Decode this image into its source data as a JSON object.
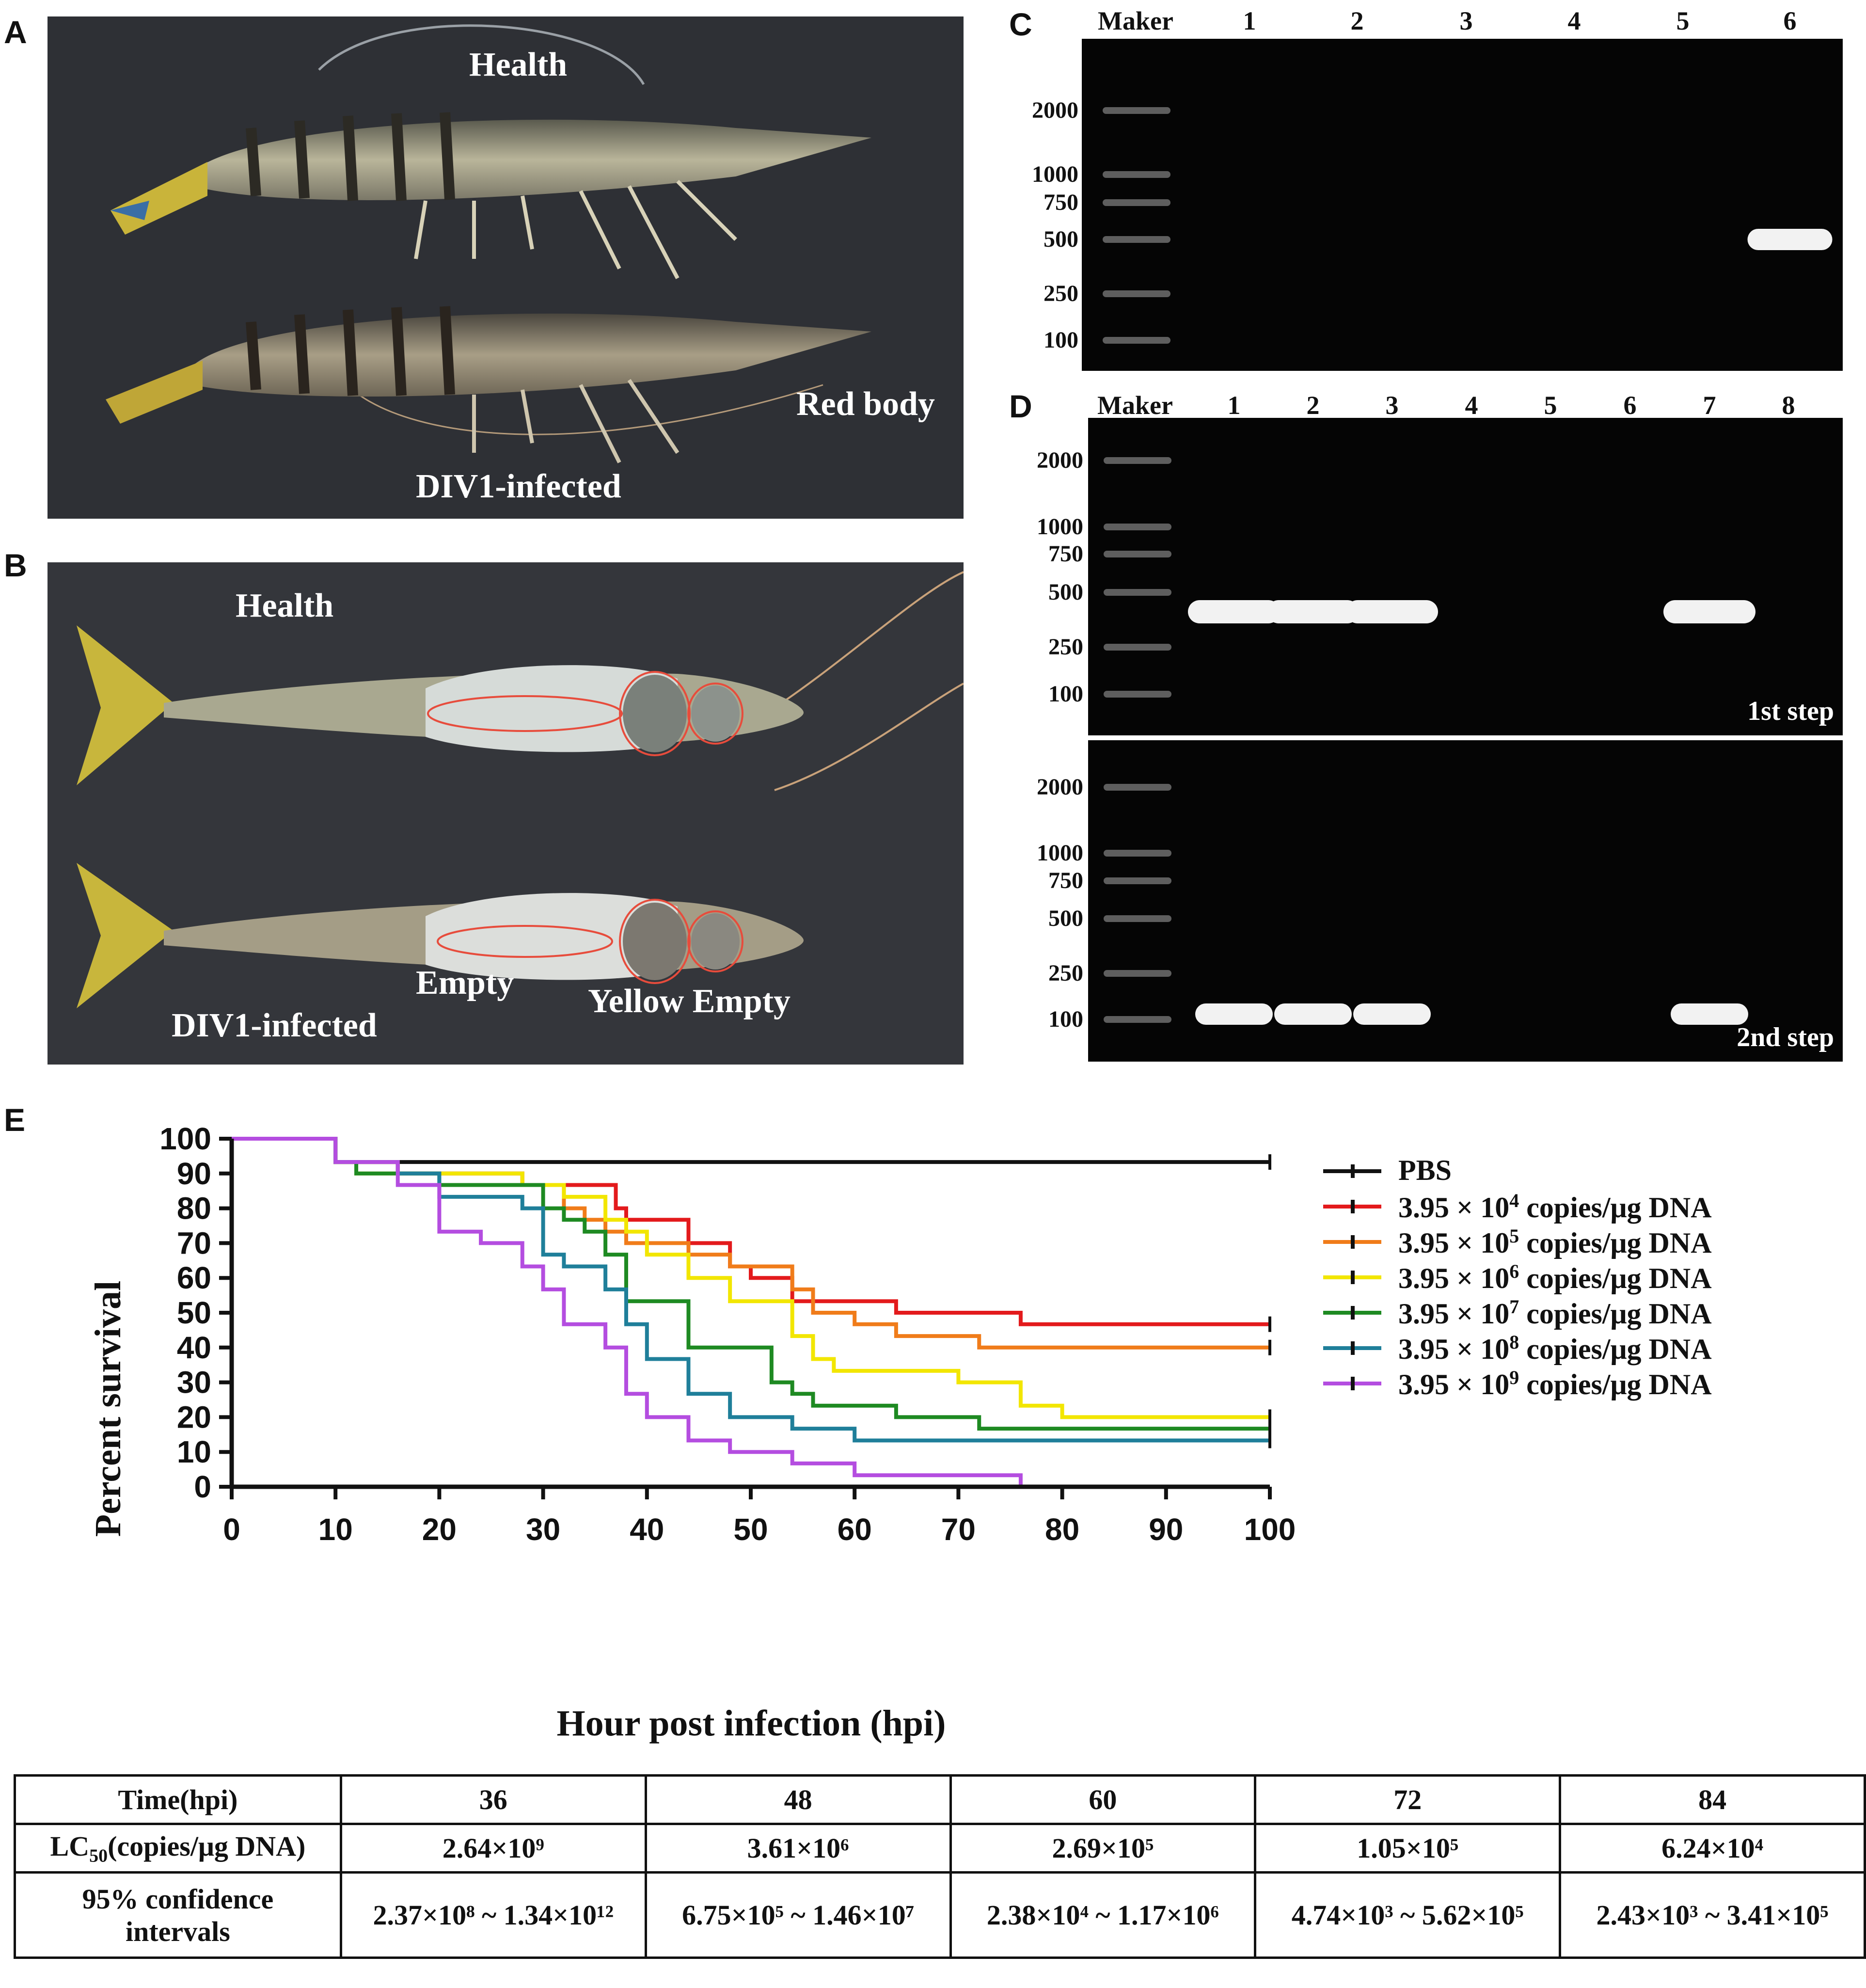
{
  "panels": {
    "a": "A",
    "b": "B",
    "c": "C",
    "d": "D",
    "e": "E"
  },
  "panel_a": {
    "top_label": "Health",
    "right_label": "Red body",
    "bottom_label": "DIV1-infected"
  },
  "panel_b": {
    "top_label": "Health",
    "bottom_label": "DIV1-infected",
    "empty_label": "Empty",
    "yellow_empty_label": "Yellow Empty"
  },
  "gel_c": {
    "marker_label": "Maker",
    "lanes": [
      "1",
      "2",
      "3",
      "4",
      "5",
      "6"
    ],
    "ladder": [
      "2000",
      "1000",
      "750",
      "500",
      "250",
      "100"
    ],
    "bands": [
      {
        "lane": "6",
        "bp": "500"
      }
    ]
  },
  "gel_d": {
    "marker_label": "Maker",
    "lanes": [
      "1",
      "2",
      "3",
      "4",
      "5",
      "6",
      "7",
      "8"
    ],
    "ladder_top": [
      "2000",
      "1000",
      "750",
      "500",
      "250",
      "100"
    ],
    "ladder_bottom": [
      "2000",
      "1000",
      "750",
      "500",
      "250",
      "100"
    ],
    "step1_label": "1st step",
    "step2_label": "2nd step",
    "step1_bands": [
      "1",
      "2",
      "3",
      "7"
    ],
    "step2_bands": [
      "1",
      "2",
      "3",
      "7"
    ]
  },
  "chart_data": {
    "type": "line",
    "step": true,
    "xlabel": "Hour post infection (hpi)",
    "ylabel": "Percent survival",
    "xlim": [
      0,
      100
    ],
    "ylim": [
      0,
      100
    ],
    "xticks": [
      "0",
      "10",
      "20",
      "30",
      "40",
      "50",
      "60",
      "70",
      "80",
      "90",
      "100"
    ],
    "yticks": [
      "0",
      "10",
      "20",
      "30",
      "40",
      "50",
      "60",
      "70",
      "80",
      "90",
      "100"
    ],
    "legend": "top-right",
    "series": [
      {
        "name": "PBS",
        "color": "#111111",
        "points": [
          [
            0,
            100
          ],
          [
            10,
            93.3
          ],
          [
            100,
            93.3
          ]
        ]
      },
      {
        "name": "3.95 × 10⁴ copies/μg DNA",
        "base": "3.95 × 10",
        "exp": "4",
        "unit": " copies/μg DNA",
        "color": "#e31a1c",
        "points": [
          [
            0,
            100
          ],
          [
            10,
            93.3
          ],
          [
            16,
            90
          ],
          [
            28,
            86.7
          ],
          [
            36,
            86.7
          ],
          [
            37,
            80
          ],
          [
            38,
            76.7
          ],
          [
            44,
            76.7
          ],
          [
            44,
            70
          ],
          [
            48,
            70
          ],
          [
            48,
            63.3
          ],
          [
            50,
            60
          ],
          [
            54,
            60
          ],
          [
            54,
            53.3
          ],
          [
            64,
            53.3
          ],
          [
            64,
            50
          ],
          [
            76,
            50
          ],
          [
            76,
            46.7
          ],
          [
            100,
            46.7
          ]
        ]
      },
      {
        "name": "3.95 × 10⁵ copies/μg DNA",
        "base": "3.95 × 10",
        "exp": "5",
        "unit": " copies/μg DNA",
        "color": "#f07c1a",
        "points": [
          [
            0,
            100
          ],
          [
            10,
            93.3
          ],
          [
            16,
            90
          ],
          [
            28,
            90
          ],
          [
            28,
            86.7
          ],
          [
            32,
            83.3
          ],
          [
            32,
            80
          ],
          [
            34,
            76.7
          ],
          [
            36,
            76.7
          ],
          [
            36,
            73.3
          ],
          [
            38,
            73.3
          ],
          [
            38,
            70
          ],
          [
            44,
            70
          ],
          [
            44,
            66.7
          ],
          [
            48,
            66.7
          ],
          [
            48,
            63.3
          ],
          [
            52,
            63.3
          ],
          [
            54,
            60
          ],
          [
            54,
            56.7
          ],
          [
            56,
            56.7
          ],
          [
            56,
            50
          ],
          [
            60,
            50
          ],
          [
            60,
            46.7
          ],
          [
            64,
            46.7
          ],
          [
            64,
            43.3
          ],
          [
            72,
            43.3
          ],
          [
            72,
            40
          ],
          [
            100,
            40
          ]
        ]
      },
      {
        "name": "3.95 × 10⁶ copies/μg DNA",
        "base": "3.95 × 10",
        "exp": "6",
        "unit": " copies/μg DNA",
        "color": "#f2e600",
        "points": [
          [
            0,
            100
          ],
          [
            10,
            93.3
          ],
          [
            12,
            90
          ],
          [
            28,
            90
          ],
          [
            28,
            86.7
          ],
          [
            32,
            83.3
          ],
          [
            36,
            76.7
          ],
          [
            38,
            73.3
          ],
          [
            40,
            70
          ],
          [
            40,
            66.7
          ],
          [
            44,
            66.7
          ],
          [
            44,
            60
          ],
          [
            48,
            60
          ],
          [
            48,
            53.3
          ],
          [
            52,
            53.3
          ],
          [
            54,
            46.7
          ],
          [
            54,
            43.3
          ],
          [
            56,
            40
          ],
          [
            56,
            36.7
          ],
          [
            58,
            36.7
          ],
          [
            58,
            33.3
          ],
          [
            70,
            33.3
          ],
          [
            70,
            30
          ],
          [
            76,
            30
          ],
          [
            76,
            23.3
          ],
          [
            80,
            23.3
          ],
          [
            80,
            20
          ],
          [
            100,
            20
          ]
        ]
      },
      {
        "name": "3.95 × 10⁷ copies/μg DNA",
        "base": "3.95 × 10",
        "exp": "7",
        "unit": " copies/μg DNA",
        "color": "#1e8a22",
        "points": [
          [
            0,
            100
          ],
          [
            10,
            93.3
          ],
          [
            12,
            90
          ],
          [
            20,
            90
          ],
          [
            20,
            86.7
          ],
          [
            28,
            86.7
          ],
          [
            30,
            80
          ],
          [
            32,
            76.7
          ],
          [
            34,
            73.3
          ],
          [
            36,
            70
          ],
          [
            36,
            66.7
          ],
          [
            38,
            66.7
          ],
          [
            38,
            53.3
          ],
          [
            44,
            53.3
          ],
          [
            44,
            40
          ],
          [
            52,
            40
          ],
          [
            52,
            30
          ],
          [
            54,
            30
          ],
          [
            54,
            26.7
          ],
          [
            56,
            26.7
          ],
          [
            56,
            23.3
          ],
          [
            64,
            23.3
          ],
          [
            64,
            20
          ],
          [
            72,
            20
          ],
          [
            72,
            16.7
          ],
          [
            100,
            16.7
          ]
        ]
      },
      {
        "name": "3.95 × 10⁸ copies/μg DNA",
        "base": "3.95 × 10",
        "exp": "8",
        "unit": " copies/μg DNA",
        "color": "#1f7f9a",
        "points": [
          [
            0,
            100
          ],
          [
            10,
            93.3
          ],
          [
            16,
            90
          ],
          [
            20,
            90
          ],
          [
            20,
            83.3
          ],
          [
            28,
            83.3
          ],
          [
            28,
            80
          ],
          [
            30,
            80
          ],
          [
            30,
            66.7
          ],
          [
            32,
            66.7
          ],
          [
            32,
            63.3
          ],
          [
            36,
            63.3
          ],
          [
            36,
            56.7
          ],
          [
            38,
            56.7
          ],
          [
            38,
            46.7
          ],
          [
            40,
            46.7
          ],
          [
            40,
            36.7
          ],
          [
            44,
            36.7
          ],
          [
            44,
            26.7
          ],
          [
            48,
            26.7
          ],
          [
            48,
            20
          ],
          [
            54,
            20
          ],
          [
            54,
            16.7
          ],
          [
            60,
            16.7
          ],
          [
            60,
            13.3
          ],
          [
            100,
            13.3
          ]
        ]
      },
      {
        "name": "3.95 × 10⁹ copies/μg DNA",
        "base": "3.95 × 10",
        "exp": "9",
        "unit": " copies/μg DNA",
        "color": "#b44de0",
        "points": [
          [
            0,
            100
          ],
          [
            10,
            93.3
          ],
          [
            16,
            86.7
          ],
          [
            20,
            86.7
          ],
          [
            20,
            73.3
          ],
          [
            24,
            73.3
          ],
          [
            24,
            70
          ],
          [
            28,
            70
          ],
          [
            28,
            63.3
          ],
          [
            30,
            63.3
          ],
          [
            30,
            56.7
          ],
          [
            32,
            56.7
          ],
          [
            32,
            46.7
          ],
          [
            36,
            46.7
          ],
          [
            36,
            40
          ],
          [
            38,
            40
          ],
          [
            38,
            26.7
          ],
          [
            40,
            26.7
          ],
          [
            40,
            20
          ],
          [
            44,
            20
          ],
          [
            44,
            13.3
          ],
          [
            48,
            13.3
          ],
          [
            48,
            10
          ],
          [
            54,
            10
          ],
          [
            54,
            6.7
          ],
          [
            60,
            6.7
          ],
          [
            60,
            3.3
          ],
          [
            76,
            3.3
          ],
          [
            76,
            0
          ]
        ]
      }
    ]
  },
  "table": {
    "row1": {
      "header": "Time(hpi)",
      "cells": [
        "36",
        "48",
        "60",
        "72",
        "84"
      ]
    },
    "row2": {
      "header": "LC50(copies/μg DNA)",
      "header_main": "LC",
      "header_sub": "50",
      "header_rest": "(copies/μg DNA)",
      "cells": [
        "2.64×10⁹",
        "3.61×10⁶",
        "2.69×10⁵",
        "1.05×10⁵",
        "6.24×10⁴"
      ]
    },
    "row3": {
      "header": "95% confidence intervals",
      "header_line1": "95% confidence",
      "header_line2": "intervals",
      "cells": [
        "2.37×10⁸ ~ 1.34×10¹²",
        "6.75×10⁵ ~ 1.46×10⁷",
        "2.38×10⁴ ~ 1.17×10⁶",
        "4.74×10³ ~ 5.62×10⁵",
        "2.43×10³ ~ 3.41×10⁵"
      ]
    }
  }
}
